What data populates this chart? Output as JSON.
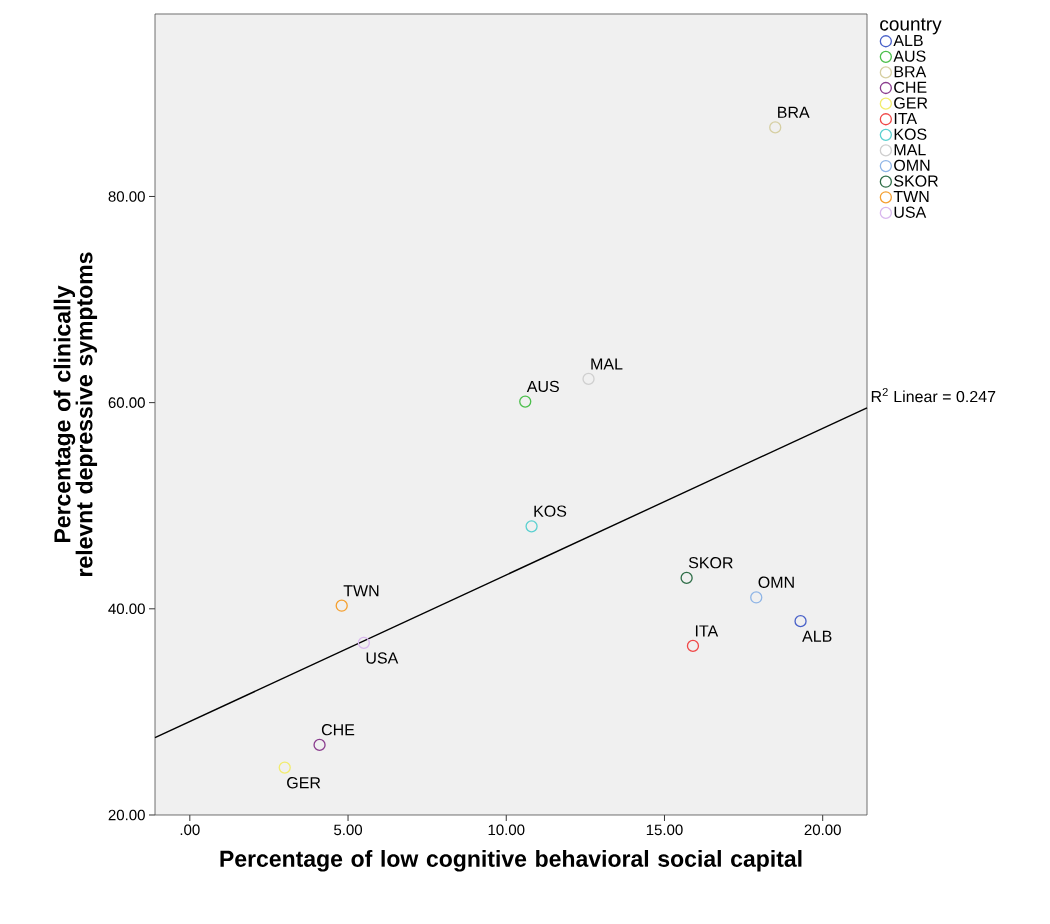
{
  "chart_data": {
    "type": "scatter",
    "xlabel": "Percentage of  low cognitive behavioral social capital",
    "ylabel": "Percentage of clinically relevnt depressive symptoms",
    "legend_title": "country",
    "legend": "right",
    "marker": "circle",
    "xlim": [
      -1.1,
      21.4
    ],
    "ylim": [
      20,
      97.7
    ],
    "xticks": [
      {
        "value": 0,
        "label": ".00"
      },
      {
        "value": 5,
        "label": "5.00"
      },
      {
        "value": 10,
        "label": "10.00"
      },
      {
        "value": 15,
        "label": "15.00"
      },
      {
        "value": 20,
        "label": "20.00"
      }
    ],
    "yticks": [
      {
        "value": 20,
        "label": "20.00"
      },
      {
        "value": 40,
        "label": "40.00"
      },
      {
        "value": 60,
        "label": "60.00"
      },
      {
        "value": 80,
        "label": "80.00"
      }
    ],
    "annotations": [
      "R$^{2}$ Linear = 0.247"
    ],
    "series": [
      {
        "name": "ALB",
        "color": "#4a62c9",
        "x": [
          19.3
        ],
        "values": [
          38.8
        ]
      },
      {
        "name": "AUS",
        "color": "#4cbf4c",
        "x": [
          10.6
        ],
        "values": [
          60.1
        ]
      },
      {
        "name": "BRA",
        "color": "#d6cfa3",
        "x": [
          18.5
        ],
        "values": [
          86.7
        ]
      },
      {
        "name": "CHE",
        "color": "#8a3d8e",
        "x": [
          4.1
        ],
        "values": [
          26.8
        ]
      },
      {
        "name": "GER",
        "color": "#f2ec6e",
        "x": [
          3.0
        ],
        "values": [
          24.6
        ]
      },
      {
        "name": "ITA",
        "color": "#f04848",
        "x": [
          15.9
        ],
        "values": [
          36.4
        ]
      },
      {
        "name": "KOS",
        "color": "#5bd0d0",
        "x": [
          10.8
        ],
        "values": [
          48.0
        ]
      },
      {
        "name": "MAL",
        "color": "#cfcfcf",
        "x": [
          12.6
        ],
        "values": [
          62.3
        ]
      },
      {
        "name": "OMN",
        "color": "#8fb5e6",
        "x": [
          17.9
        ],
        "values": [
          41.1
        ]
      },
      {
        "name": "SKOR",
        "color": "#2f6e48",
        "x": [
          15.7
        ],
        "values": [
          43.0
        ]
      },
      {
        "name": "TWN",
        "color": "#f5a030",
        "x": [
          4.8
        ],
        "values": [
          40.3
        ]
      },
      {
        "name": "USA",
        "color": "#d9b8ee",
        "x": [
          5.5
        ],
        "values": [
          36.7
        ]
      },
      {
        "type": "line",
        "marker": "none",
        "color": "#000000",
        "x": [
          -1.1,
          21.4
        ],
        "values": [
          27.5,
          59.5
        ]
      }
    ]
  }
}
